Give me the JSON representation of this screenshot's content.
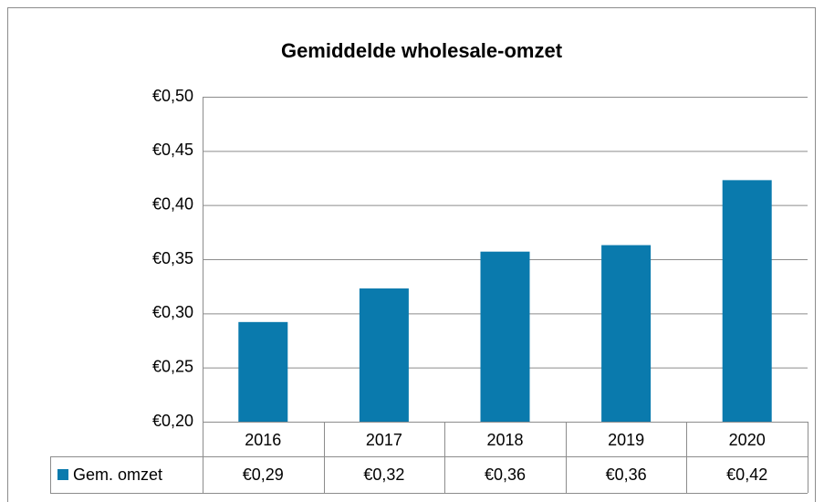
{
  "chart_data": {
    "type": "bar",
    "title": "Gemiddelde wholesale-omzet",
    "categories": [
      "2016",
      "2017",
      "2018",
      "2019",
      "2020"
    ],
    "series": [
      {
        "name": "Gem. omzet",
        "color": "#0a7aad",
        "values": [
          0.292,
          0.323,
          0.357,
          0.363,
          0.423
        ],
        "value_labels": [
          "€0,29",
          "€0,32",
          "€0,36",
          "€0,36",
          "€0,42"
        ]
      }
    ],
    "ylim": [
      0.2,
      0.5
    ],
    "yticks": [
      {
        "value": 0.2,
        "label": "€0,20"
      },
      {
        "value": 0.25,
        "label": "€0,25"
      },
      {
        "value": 0.3,
        "label": "€0,30"
      },
      {
        "value": 0.35,
        "label": "€0,35"
      },
      {
        "value": 0.4,
        "label": "€0,40"
      },
      {
        "value": 0.45,
        "label": "€0,45"
      },
      {
        "value": 0.5,
        "label": "€0,50"
      }
    ],
    "grid": true
  }
}
